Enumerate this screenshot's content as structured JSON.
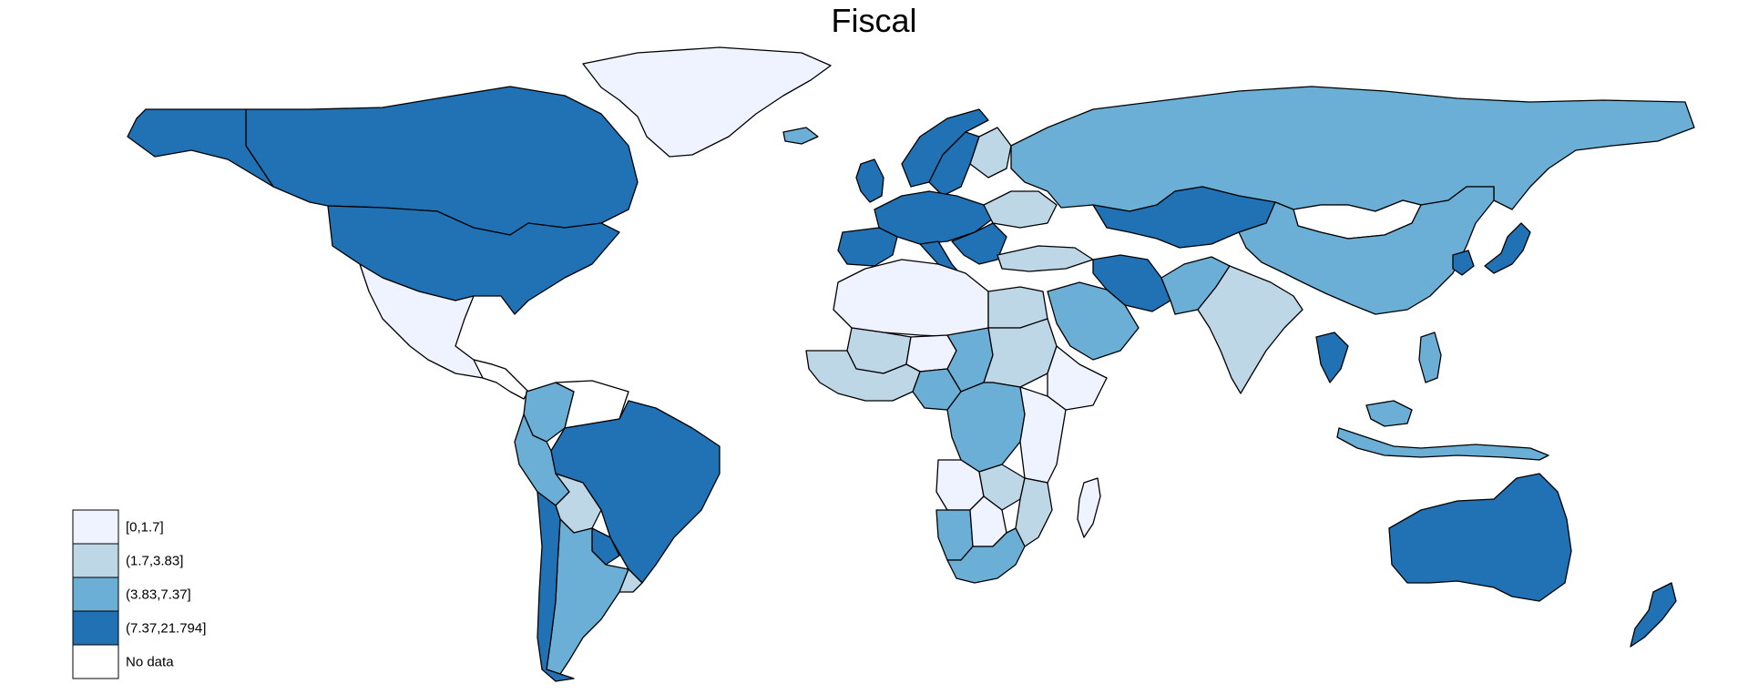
{
  "title": "Fiscal",
  "classes": [
    {
      "label": "[0,1.7]",
      "color": "#eff3ff"
    },
    {
      "label": "(1.7,3.83]",
      "color": "#bdd7e7"
    },
    {
      "label": "(3.83,7.37]",
      "color": "#6baed6"
    },
    {
      "label": "(7.37,21.794]",
      "color": "#2171b5"
    },
    {
      "label": "No data",
      "color": "#ffffff"
    }
  ],
  "regions": [
    {
      "name": "Greenland",
      "cls": 0
    },
    {
      "name": "Canada",
      "cls": 3
    },
    {
      "name": "Alaska",
      "cls": 3
    },
    {
      "name": "United States",
      "cls": 3
    },
    {
      "name": "Mexico",
      "cls": 0
    },
    {
      "name": "Central America",
      "cls": 4
    },
    {
      "name": "Colombia",
      "cls": 2
    },
    {
      "name": "Venezuela",
      "cls": 4
    },
    {
      "name": "Brazil",
      "cls": 3
    },
    {
      "name": "Peru",
      "cls": 2
    },
    {
      "name": "Bolivia",
      "cls": 1
    },
    {
      "name": "Paraguay",
      "cls": 3
    },
    {
      "name": "Argentina",
      "cls": 2
    },
    {
      "name": "Chile",
      "cls": 3
    },
    {
      "name": "Uruguay",
      "cls": 1
    },
    {
      "name": "Iceland",
      "cls": 2
    },
    {
      "name": "United Kingdom",
      "cls": 3
    },
    {
      "name": "Norway",
      "cls": 3
    },
    {
      "name": "Sweden",
      "cls": 3
    },
    {
      "name": "Finland",
      "cls": 1
    },
    {
      "name": "Western Europe",
      "cls": 3
    },
    {
      "name": "Iberia",
      "cls": 3
    },
    {
      "name": "Italy",
      "cls": 3
    },
    {
      "name": "Eastern Europe",
      "cls": 1
    },
    {
      "name": "Balkans",
      "cls": 3
    },
    {
      "name": "Turkey",
      "cls": 1
    },
    {
      "name": "Russia",
      "cls": 2
    },
    {
      "name": "Kazakhstan",
      "cls": 3
    },
    {
      "name": "Mongolia",
      "cls": 4
    },
    {
      "name": "China",
      "cls": 2
    },
    {
      "name": "Iran",
      "cls": 3
    },
    {
      "name": "Saudi Arabia",
      "cls": 2
    },
    {
      "name": "Pakistan",
      "cls": 2
    },
    {
      "name": "India",
      "cls": 1
    },
    {
      "name": "Thailand",
      "cls": 3
    },
    {
      "name": "Japan",
      "cls": 3
    },
    {
      "name": "Korea",
      "cls": 3
    },
    {
      "name": "Indonesia",
      "cls": 2
    },
    {
      "name": "Malaysia",
      "cls": 2
    },
    {
      "name": "Philippines",
      "cls": 2
    },
    {
      "name": "Australia",
      "cls": 3
    },
    {
      "name": "New Zealand",
      "cls": 3
    },
    {
      "name": "North Africa",
      "cls": 0
    },
    {
      "name": "Egypt",
      "cls": 1
    },
    {
      "name": "Mali",
      "cls": 1
    },
    {
      "name": "Niger",
      "cls": 0
    },
    {
      "name": "Chad",
      "cls": 2
    },
    {
      "name": "Sudan",
      "cls": 1
    },
    {
      "name": "Ethiopia",
      "cls": 0
    },
    {
      "name": "Nigeria",
      "cls": 2
    },
    {
      "name": "West Africa",
      "cls": 1
    },
    {
      "name": "Congo DR",
      "cls": 2
    },
    {
      "name": "Kenya Tanzania",
      "cls": 0
    },
    {
      "name": "Angola",
      "cls": 0
    },
    {
      "name": "Zambia",
      "cls": 1
    },
    {
      "name": "Mozambique",
      "cls": 1
    },
    {
      "name": "Namibia",
      "cls": 2
    },
    {
      "name": "Botswana",
      "cls": 0
    },
    {
      "name": "South Africa",
      "cls": 2
    },
    {
      "name": "Madagascar",
      "cls": 0
    }
  ]
}
